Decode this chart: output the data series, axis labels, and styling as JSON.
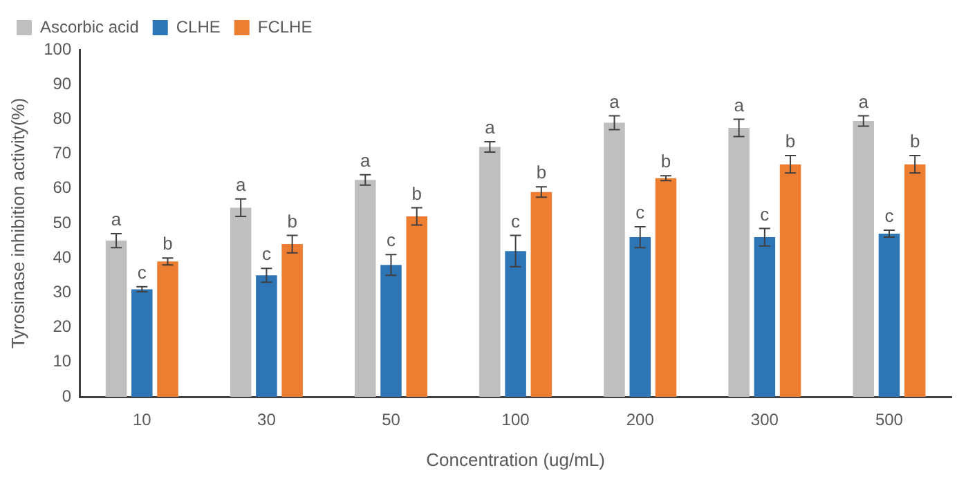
{
  "chart_data": {
    "type": "bar",
    "xlabel": "Concentration (ug/mL)",
    "ylabel": "Tyrosinase inhibition activity(%)",
    "categories": [
      "10",
      "30",
      "50",
      "100",
      "200",
      "300",
      "500"
    ],
    "series": [
      {
        "name": "Ascorbic acid",
        "color": "#bfbfbf",
        "values": [
          45,
          54.5,
          62.5,
          72,
          79,
          77.5,
          79.5
        ],
        "errors": [
          2,
          2.5,
          1.5,
          1.5,
          2,
          2.5,
          1.5
        ],
        "value_labels": [
          "a",
          "a",
          "a",
          "a",
          "a",
          "a",
          "a"
        ]
      },
      {
        "name": "CLHE",
        "color": "#2e75b6",
        "values": [
          31,
          35,
          38,
          42,
          46,
          46,
          47
        ],
        "errors": [
          0.7,
          2,
          3,
          4.5,
          3,
          2.5,
          1
        ],
        "value_labels": [
          "c",
          "c",
          "c",
          "c",
          "c",
          "c",
          "c"
        ]
      },
      {
        "name": "FCLHE",
        "color": "#ed7d31",
        "values": [
          39,
          44,
          52,
          59,
          63,
          67,
          67
        ],
        "errors": [
          1,
          2.5,
          2.5,
          1.5,
          0.7,
          2.5,
          2.5
        ],
        "value_labels": [
          "b",
          "b",
          "b",
          "b",
          "b",
          "b",
          "b"
        ]
      }
    ],
    "ylim": [
      0,
      100
    ],
    "yticks": [
      0,
      10,
      20,
      30,
      40,
      50,
      60,
      70,
      80,
      90,
      100
    ],
    "grid": false,
    "legend": "top left"
  }
}
